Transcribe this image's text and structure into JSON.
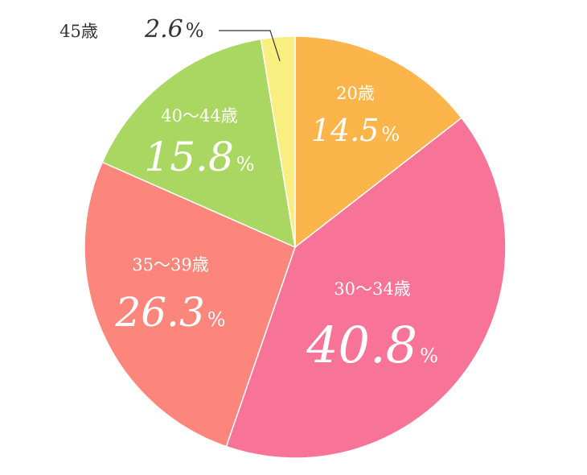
{
  "chart_data": {
    "type": "pie",
    "title": "",
    "unit": "%",
    "start_angle_deg": 0,
    "direction": "clockwise",
    "slices": [
      {
        "label": "20歳",
        "value": 14.5,
        "value_text": "14.5",
        "color": "#FBB54B"
      },
      {
        "label": "30～34歳",
        "value": 40.8,
        "value_text": "40.8",
        "color": "#F77397"
      },
      {
        "label": "35～39歳",
        "value": 26.3,
        "value_text": "26.3",
        "color": "#FC867B"
      },
      {
        "label": "40～44歳",
        "value": 15.8,
        "value_text": "15.8",
        "color": "#A9D761"
      },
      {
        "label": "45歳",
        "value": 2.6,
        "value_text": "2.6",
        "color": "#F9EE80"
      }
    ]
  }
}
